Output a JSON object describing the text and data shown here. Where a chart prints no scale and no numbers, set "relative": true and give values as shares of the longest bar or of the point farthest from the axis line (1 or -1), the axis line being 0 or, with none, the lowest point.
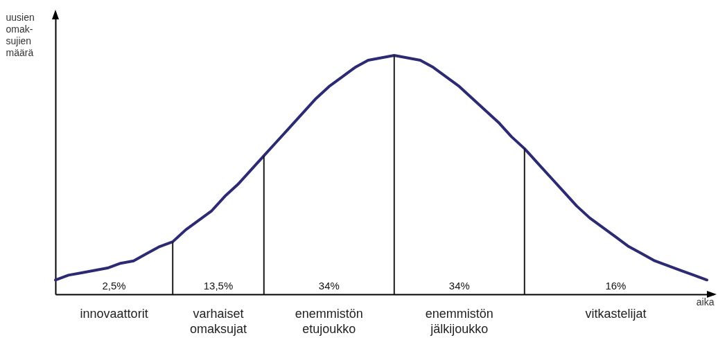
{
  "chart_data": {
    "type": "line",
    "relative": true,
    "xlabel": "aika",
    "ylabel": "uusien omak-sujien määrä",
    "categories": [
      null,
      null,
      null,
      null,
      null,
      null,
      null,
      null,
      null,
      null,
      null,
      null,
      null,
      null,
      null,
      null,
      null,
      null,
      null,
      null,
      null,
      null,
      null,
      null,
      null,
      null,
      null,
      null,
      null,
      null,
      null,
      null,
      null,
      null,
      null,
      null,
      null,
      null,
      null,
      null,
      null,
      null,
      null,
      null,
      null,
      null,
      null,
      null,
      null,
      null,
      null
    ],
    "series": [
      {
        "color": "#2b2a7a",
        "values": [
          0.06,
          0.08,
          0.09,
          0.1,
          0.11,
          0.13,
          0.14,
          0.17,
          0.2,
          0.22,
          0.27,
          0.31,
          0.35,
          0.41,
          0.46,
          0.52,
          0.58,
          0.64,
          0.7,
          0.76,
          0.82,
          0.87,
          0.91,
          0.95,
          0.98,
          0.99,
          1.0,
          0.99,
          0.98,
          0.95,
          0.91,
          0.87,
          0.82,
          0.77,
          0.72,
          0.66,
          0.61,
          0.55,
          0.49,
          0.43,
          0.37,
          0.32,
          0.28,
          0.24,
          0.2,
          0.17,
          0.14,
          0.12,
          0.1,
          0.08,
          0.06
        ]
      }
    ],
    "annotations": [
      "2,5%",
      "13,5%",
      "34%",
      "34%",
      "16%",
      "innovaattorit",
      "varhaiset omaksujat",
      "enemmistön etujoukko",
      "enemmistön jälkijoukko",
      "vitkastelijat"
    ],
    "grid": false,
    "tick_labels": false,
    "marker": "none",
    "line_style": "solid"
  }
}
